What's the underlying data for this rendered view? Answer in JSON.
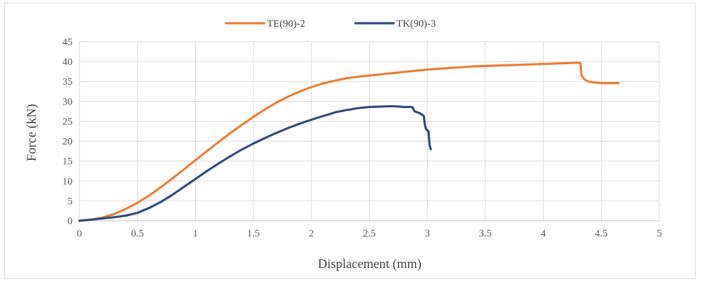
{
  "chart_data": {
    "type": "line",
    "title": "",
    "xlabel": "Displacement (mm)",
    "ylabel": "Force (kN)",
    "xlim": [
      0,
      5
    ],
    "ylim": [
      0,
      45
    ],
    "xticks": [
      "0",
      "0.5",
      "1",
      "1.5",
      "2",
      "2.5",
      "3",
      "3.5",
      "4",
      "4.5",
      "5"
    ],
    "yticks": [
      "0",
      "5",
      "10",
      "15",
      "20",
      "25",
      "30",
      "35",
      "40",
      "45"
    ],
    "grid": true,
    "legend_position": "top-center",
    "series": [
      {
        "name": "TE(90)-2",
        "color": "#ED7D31",
        "points": [
          [
            0,
            0
          ],
          [
            0.1,
            0.3
          ],
          [
            0.2,
            0.8
          ],
          [
            0.3,
            1.7
          ],
          [
            0.4,
            3.0
          ],
          [
            0.5,
            4.5
          ],
          [
            0.6,
            6.3
          ],
          [
            0.7,
            8.4
          ],
          [
            0.8,
            10.6
          ],
          [
            0.9,
            12.9
          ],
          [
            1.0,
            15.2
          ],
          [
            1.1,
            17.5
          ],
          [
            1.2,
            19.8
          ],
          [
            1.3,
            22.0
          ],
          [
            1.4,
            24.1
          ],
          [
            1.5,
            26.1
          ],
          [
            1.6,
            28.0
          ],
          [
            1.7,
            29.7
          ],
          [
            1.8,
            31.2
          ],
          [
            1.9,
            32.5
          ],
          [
            2.0,
            33.6
          ],
          [
            2.1,
            34.5
          ],
          [
            2.2,
            35.2
          ],
          [
            2.3,
            35.8
          ],
          [
            2.4,
            36.2
          ],
          [
            2.5,
            36.5
          ],
          [
            2.6,
            36.8
          ],
          [
            2.7,
            37.1
          ],
          [
            2.8,
            37.4
          ],
          [
            2.9,
            37.7
          ],
          [
            3.0,
            38.0
          ],
          [
            3.1,
            38.2
          ],
          [
            3.2,
            38.4
          ],
          [
            3.3,
            38.6
          ],
          [
            3.4,
            38.8
          ],
          [
            3.5,
            38.9
          ],
          [
            3.6,
            39.0
          ],
          [
            3.7,
            39.1
          ],
          [
            3.8,
            39.2
          ],
          [
            3.9,
            39.3
          ],
          [
            4.0,
            39.4
          ],
          [
            4.1,
            39.5
          ],
          [
            4.2,
            39.6
          ],
          [
            4.3,
            39.7
          ],
          [
            4.32,
            39.6
          ],
          [
            4.33,
            36.5
          ],
          [
            4.36,
            35.4
          ],
          [
            4.4,
            34.9
          ],
          [
            4.5,
            34.6
          ],
          [
            4.6,
            34.6
          ],
          [
            4.65,
            34.6
          ]
        ]
      },
      {
        "name": "TK(90)-3",
        "color": "#2F4A7C",
        "points": [
          [
            0,
            0
          ],
          [
            0.1,
            0.3
          ],
          [
            0.2,
            0.6
          ],
          [
            0.3,
            0.9
          ],
          [
            0.4,
            1.3
          ],
          [
            0.5,
            2.0
          ],
          [
            0.6,
            3.2
          ],
          [
            0.7,
            4.7
          ],
          [
            0.8,
            6.5
          ],
          [
            0.9,
            8.5
          ],
          [
            1.0,
            10.5
          ],
          [
            1.1,
            12.5
          ],
          [
            1.2,
            14.4
          ],
          [
            1.3,
            16.2
          ],
          [
            1.4,
            17.9
          ],
          [
            1.5,
            19.4
          ],
          [
            1.6,
            20.8
          ],
          [
            1.7,
            22.1
          ],
          [
            1.8,
            23.3
          ],
          [
            1.9,
            24.4
          ],
          [
            2.0,
            25.4
          ],
          [
            2.1,
            26.3
          ],
          [
            2.2,
            27.2
          ],
          [
            2.3,
            27.8
          ],
          [
            2.4,
            28.3
          ],
          [
            2.5,
            28.6
          ],
          [
            2.6,
            28.7
          ],
          [
            2.7,
            28.8
          ],
          [
            2.8,
            28.6
          ],
          [
            2.87,
            28.6
          ],
          [
            2.89,
            27.5
          ],
          [
            2.92,
            27.2
          ],
          [
            2.95,
            26.8
          ],
          [
            2.97,
            26.3
          ],
          [
            2.98,
            24.0
          ],
          [
            2.99,
            23.0
          ],
          [
            3.01,
            22.5
          ],
          [
            3.02,
            19.0
          ],
          [
            3.03,
            18.0
          ]
        ]
      }
    ]
  }
}
